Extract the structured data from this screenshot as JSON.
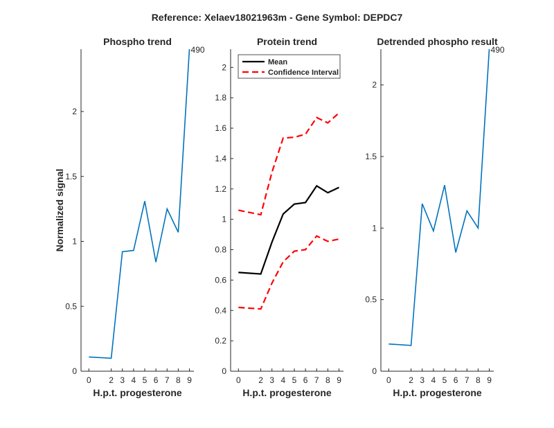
{
  "figure": {
    "title": "Reference:  Xelaev18021963m - Gene Symbol:  DEPDC7"
  },
  "chart_data": [
    {
      "id": "phospho",
      "type": "line",
      "title": "Phospho trend",
      "xlabel": "H.p.t. progesterone",
      "ylabel": "Normalized signal",
      "xticks": [
        0,
        2,
        3,
        4,
        5,
        6,
        7,
        8,
        9
      ],
      "yticks": [
        0,
        0.5,
        1,
        1.5,
        2
      ],
      "ytick_labels": [
        "0",
        "0.5",
        "1",
        "1.5",
        "2"
      ],
      "ylim": [
        0,
        2.48
      ],
      "series": [
        {
          "color": "#0072BD",
          "style": "solid",
          "x": [
            0,
            2,
            3,
            4,
            5,
            6,
            7,
            8,
            9
          ],
          "y": [
            0.11,
            0.1,
            0.92,
            0.93,
            1.31,
            0.84,
            1.25,
            1.07,
            2.48
          ]
        }
      ],
      "annotations": [
        {
          "x": 9,
          "y": 2.48,
          "text": "490"
        }
      ]
    },
    {
      "id": "protein",
      "type": "line",
      "title": "Protein trend",
      "xlabel": "H.p.t. progesterone",
      "ylabel": "",
      "xticks": [
        0,
        2,
        3,
        4,
        5,
        6,
        7,
        8,
        9
      ],
      "yticks": [
        0,
        0.2,
        0.4,
        0.6,
        0.8,
        1,
        1.2,
        1.4,
        1.6,
        1.8,
        2
      ],
      "ytick_labels": [
        "0",
        "0.2",
        "0.4",
        "0.6",
        "0.8",
        "1",
        "1.2",
        "1.4",
        "1.6",
        "1.8",
        "2"
      ],
      "ylim": [
        0,
        2.12
      ],
      "legend_position": "top-left",
      "series": [
        {
          "name": "Mean",
          "color": "#000000",
          "style": "solid",
          "x": [
            0,
            2,
            3,
            4,
            5,
            6,
            7,
            8,
            9
          ],
          "y": [
            0.65,
            0.64,
            0.85,
            1.035,
            1.1,
            1.11,
            1.22,
            1.175,
            1.21
          ]
        },
        {
          "name": "Confidence Interval",
          "color": "#FF0000",
          "style": "dashed",
          "x": [
            0,
            2,
            3,
            4,
            5,
            6,
            7,
            8,
            9
          ],
          "y": [
            1.06,
            1.03,
            1.31,
            1.535,
            1.54,
            1.56,
            1.67,
            1.635,
            1.7
          ]
        },
        {
          "color": "#FF0000",
          "style": "dashed",
          "x": [
            0,
            2,
            3,
            4,
            5,
            6,
            7,
            8,
            9
          ],
          "y": [
            0.42,
            0.41,
            0.58,
            0.72,
            0.79,
            0.8,
            0.89,
            0.855,
            0.87
          ]
        }
      ]
    },
    {
      "id": "detrended",
      "type": "line",
      "title": "Detrended phospho result",
      "xlabel": "H.p.t. progesterone",
      "ylabel": "",
      "xticks": [
        0,
        2,
        3,
        4,
        5,
        6,
        7,
        8,
        9
      ],
      "yticks": [
        0,
        0.5,
        1,
        1.5,
        2
      ],
      "ytick_labels": [
        "0",
        "0.5",
        "1",
        "1.5",
        "2"
      ],
      "ylim": [
        0,
        2.25
      ],
      "series": [
        {
          "color": "#0072BD",
          "style": "solid",
          "x": [
            0,
            2,
            3,
            4,
            5,
            6,
            7,
            8,
            9
          ],
          "y": [
            0.19,
            0.18,
            1.17,
            0.98,
            1.3,
            0.83,
            1.12,
            1.0,
            2.25
          ]
        }
      ],
      "annotations": [
        {
          "x": 9,
          "y": 2.25,
          "text": "490"
        }
      ]
    }
  ]
}
